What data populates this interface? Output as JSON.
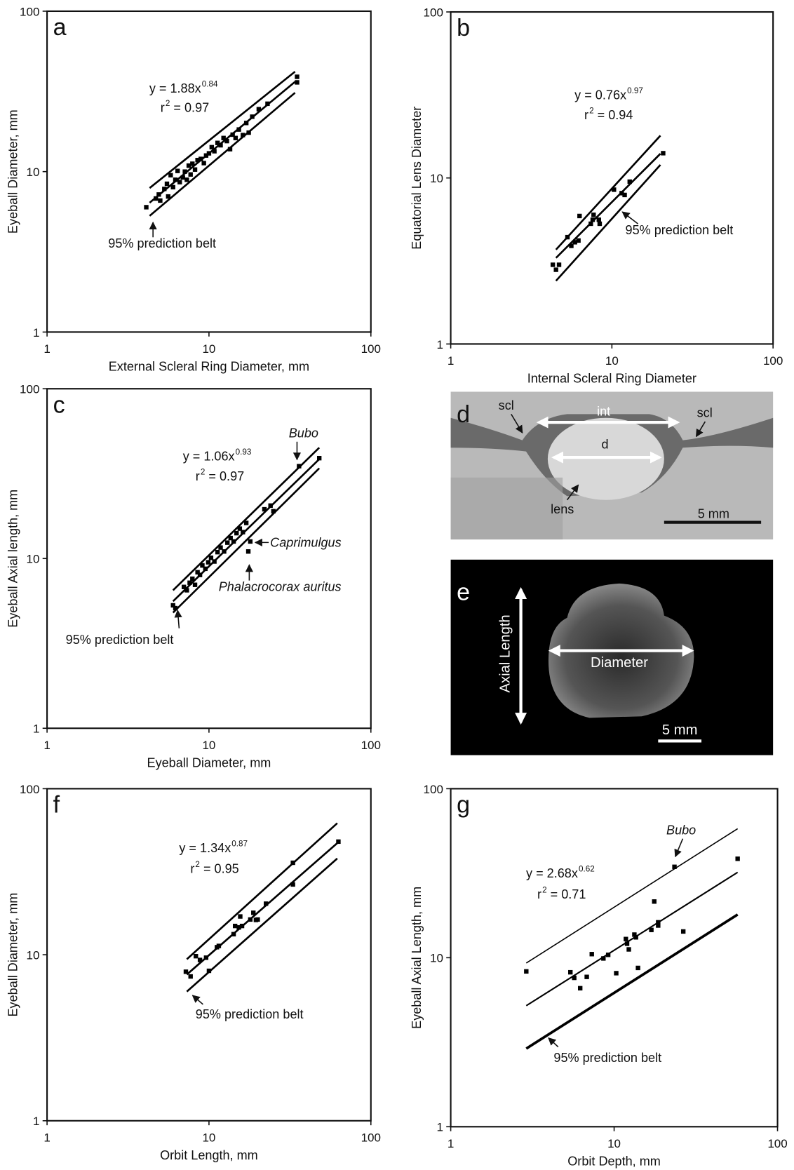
{
  "chart_data": [
    {
      "type": "scatter",
      "panel": "a",
      "x_label": "External Scleral Ring Diameter, mm",
      "y_label": "Eyeball Diameter, mm",
      "log_x": true,
      "log_y": true,
      "xlim": [
        1,
        100
      ],
      "ylim": [
        1,
        100
      ],
      "xticks": [
        1,
        10,
        100
      ],
      "yticks": [
        1,
        10,
        100
      ],
      "color": "#000000",
      "equation": "y = 1.88x",
      "exponent": "0.84",
      "r2_symbol": "r",
      "r2_superscript": "2",
      "r2_value": " = 0.97",
      "x": [
        4.1,
        4.7,
        4.9,
        5.0,
        5.3,
        5.5,
        5.6,
        5.8,
        6.0,
        6.2,
        6.4,
        6.6,
        6.9,
        7.1,
        7.3,
        7.5,
        7.7,
        7.9,
        8.2,
        8.5,
        8.9,
        9.3,
        9.6,
        10,
        10.4,
        10.8,
        11.3,
        11.8,
        12.3,
        12.9,
        13.5,
        14.0,
        14.6,
        15.3,
        16.2,
        17.0,
        17.6,
        18.5,
        20.3,
        23,
        35,
        35
      ],
      "y": [
        6.0,
        6.8,
        7.2,
        6.6,
        7.8,
        8.4,
        7.0,
        9.5,
        8.0,
        8.9,
        10.1,
        8.6,
        9.2,
        10.0,
        8.9,
        10.9,
        9.6,
        11.2,
        10.3,
        11.8,
        12.0,
        11.3,
        12.6,
        13.0,
        14.2,
        13.4,
        15.1,
        14.6,
        16.2,
        15.5,
        13.8,
        17.0,
        16.2,
        18.3,
        16.9,
        20.1,
        17.5,
        22.0,
        24.5,
        26.5,
        36,
        39
      ],
      "fit_lines": [
        {
          "x": [
            4.3,
            34
          ],
          "y": [
            7.9,
            42
          ],
          "width": 2.5
        },
        {
          "x": [
            4.3,
            34
          ],
          "y": [
            6.4,
            36.3
          ],
          "width": 2.5
        },
        {
          "x": [
            4.3,
            34
          ],
          "y": [
            5.3,
            31
          ],
          "width": 2.5
        }
      ],
      "annotations": [
        "95% prediction belt"
      ]
    },
    {
      "type": "scatter",
      "panel": "b",
      "x_label": "Internal Scleral Ring Diameter",
      "y_label": "Equatorial Lens Diameter",
      "log_x": true,
      "log_y": true,
      "xlim": [
        1,
        100
      ],
      "ylim": [
        1,
        100
      ],
      "xticks": [
        1,
        10,
        100
      ],
      "yticks": [
        1,
        10,
        100
      ],
      "color": "#000000",
      "equation": "y = 0.76x",
      "exponent": "0.97",
      "r2_symbol": "r",
      "r2_superscript": "2",
      "r2_value": " = 0.94",
      "x": [
        4.3,
        4.5,
        4.7,
        5.3,
        5.6,
        5.9,
        6.2,
        6.3,
        7.4,
        7.6,
        7.7,
        8.3,
        8.4,
        10.3,
        11.5,
        12,
        12.9,
        20.8
      ],
      "y": [
        3.0,
        2.8,
        3.0,
        4.4,
        3.9,
        4.1,
        4.2,
        5.9,
        5.3,
        5.6,
        6.0,
        5.6,
        5.3,
        8.5,
        8.1,
        7.9,
        9.5,
        14.1
      ],
      "fit_lines": [
        {
          "x": [
            4.5,
            20
          ],
          "y": [
            3.7,
            18
          ],
          "width": 2.5
        },
        {
          "x": [
            4.5,
            20
          ],
          "y": [
            3.3,
            14
          ],
          "width": 2.5
        },
        {
          "x": [
            4.5,
            20
          ],
          "y": [
            2.4,
            12
          ],
          "width": 2.5
        }
      ],
      "annotations": [
        "95% prediction belt"
      ]
    },
    {
      "type": "scatter",
      "panel": "c",
      "x_label": "Eyeball Diameter, mm",
      "y_label": "Eyeball Axial length, mm",
      "log_x": true,
      "log_y": true,
      "xlim": [
        1,
        100
      ],
      "ylim": [
        1,
        100
      ],
      "xticks": [
        1,
        10,
        100
      ],
      "yticks": [
        1,
        10,
        100
      ],
      "color": "#000000",
      "equation": "y = 1.06x",
      "exponent": "0.93",
      "r2_symbol": "r",
      "r2_superscript": "2",
      "r2_value": " = 0.97",
      "x": [
        6.0,
        6.2,
        7.0,
        7.3,
        7.6,
        7.9,
        8.2,
        8.5,
        8.8,
        9.1,
        9.5,
        9.9,
        10.3,
        10.8,
        11.3,
        11.8,
        12.4,
        13.0,
        13.6,
        14.2,
        14.8,
        15.5,
        16.2,
        17.0,
        17.5,
        18,
        22,
        24,
        25,
        36,
        48
      ],
      "y": [
        5.3,
        5.1,
        6.8,
        6.5,
        7.2,
        7.6,
        7.0,
        8.3,
        8.0,
        9.1,
        8.7,
        9.5,
        10.1,
        9.6,
        10.9,
        11.6,
        11.0,
        12.4,
        13.2,
        12.6,
        14.1,
        15.0,
        14.3,
        16.2,
        11.0,
        12.6,
        19.5,
        20.5,
        19.0,
        35,
        39
      ],
      "fit_lines": [
        {
          "x": [
            6,
            48
          ],
          "y": [
            6.5,
            45
          ],
          "width": 2.5
        },
        {
          "x": [
            6,
            48
          ],
          "y": [
            5.6,
            38.5
          ],
          "width": 2.5
        },
        {
          "x": [
            6,
            48
          ],
          "y": [
            4.8,
            34
          ],
          "width": 2.5
        }
      ],
      "annotations": [
        "Bubo",
        "Caprimulgus",
        "Phalacrocorax auritus",
        "95% prediction belt"
      ]
    },
    {
      "type": "scatter",
      "panel": "f",
      "x_label": "Orbit Length, mm",
      "y_label": "Eyeball Diameter, mm",
      "log_x": true,
      "log_y": true,
      "xlim": [
        1,
        100
      ],
      "ylim": [
        1,
        100
      ],
      "xticks": [
        1,
        10,
        100
      ],
      "yticks": [
        1,
        10,
        100
      ],
      "color": "#000000",
      "equation": "y = 1.34x",
      "exponent": "0.87",
      "r2_symbol": "r",
      "r2_superscript": "2",
      "r2_value": " = 0.95",
      "x": [
        7.2,
        7.7,
        8.3,
        8.8,
        9.6,
        10,
        11.2,
        11.5,
        14.2,
        14.5,
        15.3,
        15.6,
        16,
        18,
        18.8,
        19.5,
        20,
        22.5,
        33,
        33,
        63
      ],
      "y": [
        7.9,
        7.4,
        9.8,
        9.3,
        9.6,
        8.0,
        11.1,
        11.3,
        13.3,
        14.9,
        14.6,
        17.0,
        14.9,
        16.3,
        17.9,
        16.2,
        16.3,
        20.3,
        35.8,
        26.5,
        48
      ],
      "fit_lines": [
        {
          "x": [
            7.3,
            62
          ],
          "y": [
            9.4,
            62
          ],
          "width": 2.5
        },
        {
          "x": [
            7.3,
            62
          ],
          "y": [
            7.6,
            47
          ],
          "width": 2.5
        },
        {
          "x": [
            7.3,
            62
          ],
          "y": [
            6.0,
            38
          ],
          "width": 2.5
        }
      ],
      "annotations": [
        "95% prediction belt"
      ]
    },
    {
      "type": "scatter",
      "panel": "g",
      "x_label": "Orbit Depth, mm",
      "y_label": "Eyeball Axial Length, mm",
      "log_x": true,
      "log_y": true,
      "xlim": [
        1,
        100
      ],
      "ylim": [
        1,
        100
      ],
      "xticks": [
        1,
        10,
        100
      ],
      "yticks": [
        1,
        10,
        100
      ],
      "color": "#000000",
      "equation": "y = 2.68x",
      "exponent": "0.62",
      "r2_symbol": "r",
      "r2_superscript": "2",
      "r2_value": " = 0.71",
      "x": [
        2.9,
        5.4,
        5.7,
        6.2,
        6.8,
        7.3,
        8.6,
        9.2,
        10.3,
        11.8,
        12,
        12.3,
        13.3,
        13.6,
        14.0,
        16.9,
        17.6,
        18.6,
        18.6,
        23.4,
        26.5,
        57
      ],
      "y": [
        8.3,
        8.2,
        7.6,
        6.6,
        7.7,
        10.5,
        9.9,
        10.4,
        8.1,
        12.9,
        12.1,
        11.2,
        13.7,
        13.2,
        8.7,
        14.6,
        21.5,
        15.5,
        16.2,
        34.5,
        14.3,
        38.5
      ],
      "fit_lines": [
        {
          "x": [
            2.9,
            57
          ],
          "y": [
            9.3,
            58
          ],
          "width": 1.5
        },
        {
          "x": [
            2.9,
            57
          ],
          "y": [
            5.2,
            32
          ],
          "width": 2
        },
        {
          "x": [
            2.9,
            57
          ],
          "y": [
            2.9,
            18
          ],
          "width": 3.5
        }
      ],
      "annotations": [
        "Bubo",
        "95% prediction belt"
      ]
    }
  ],
  "photos": [
    {
      "panel": "d",
      "labels": [
        "scl",
        "int",
        "scl",
        "d",
        "lens",
        "5 mm"
      ]
    },
    {
      "panel": "e",
      "labels": [
        "Axial Length",
        "Diameter",
        "5 mm"
      ]
    }
  ]
}
